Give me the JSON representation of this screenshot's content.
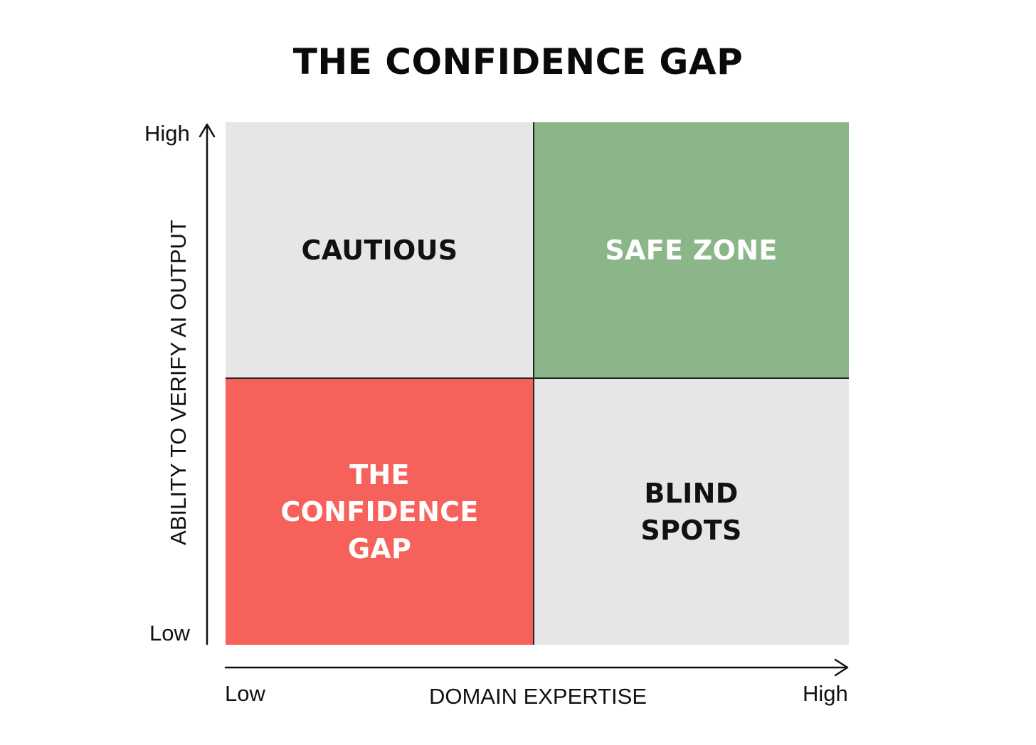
{
  "title": "THE CONFIDENCE GAP",
  "y_axis": {
    "label": "ABILITY TO VERIFY AI OUTPUT",
    "high_label": "High",
    "low_label": "Low"
  },
  "x_axis": {
    "label": "DOMAIN EXPERTISE",
    "low_label": "Low",
    "high_label": "High"
  },
  "quadrants": {
    "top_left": {
      "lines": [
        "CAUTIOUS"
      ],
      "color": "#e6e6e6"
    },
    "top_right": {
      "lines": [
        "SAFE ZONE"
      ],
      "color": "#8ab68a"
    },
    "bottom_left": {
      "lines": [
        "THE",
        "CONFIDENCE",
        "GAP"
      ],
      "color": "#f6625b"
    },
    "bottom_right": {
      "lines": [
        "BLIND",
        "SPOTS"
      ],
      "color": "#e6e6e6"
    }
  }
}
